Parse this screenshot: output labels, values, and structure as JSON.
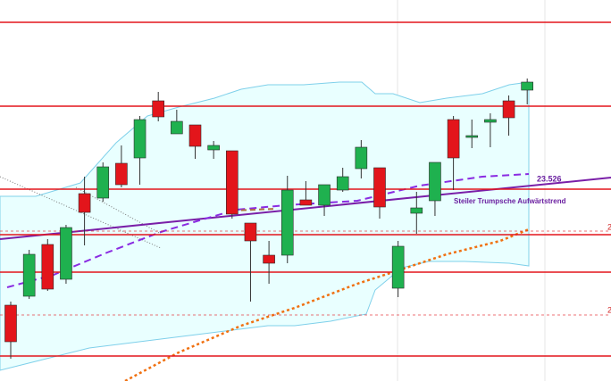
{
  "chart_data": {
    "type": "candlestick",
    "ylim": [
      22371,
      24506
    ],
    "up_color": "#1fb14f",
    "down_color": "#e3151b",
    "open": [
      22796,
      22846,
      23136,
      22941,
      23421,
      23396,
      23591,
      23621,
      23941,
      23756,
      23806,
      23666,
      23661,
      23256,
      23076,
      23076,
      23386,
      23356,
      23441,
      23561,
      23566,
      22891,
      23311,
      23381,
      23836,
      23736,
      23821,
      23941,
      24001
    ],
    "high": [
      22816,
      23106,
      23166,
      23246,
      23516,
      23596,
      23691,
      23856,
      23991,
      23891,
      23806,
      23716,
      23661,
      23256,
      23156,
      23521,
      23491,
      23471,
      23566,
      23721,
      23566,
      23156,
      23431,
      23596,
      23856,
      23836,
      23871,
      23971,
      24066
    ],
    "low": [
      22496,
      22831,
      22876,
      22916,
      23131,
      23376,
      23456,
      23471,
      23826,
      23756,
      23616,
      23616,
      23281,
      22816,
      22916,
      23031,
      23356,
      23296,
      23431,
      23506,
      23281,
      22841,
      23196,
      23296,
      23441,
      23676,
      23681,
      23746,
      23921
    ],
    "close": [
      22591,
      23081,
      22886,
      23231,
      23316,
      23571,
      23471,
      23836,
      23851,
      23826,
      23686,
      23691,
      23306,
      23156,
      23031,
      23441,
      23356,
      23471,
      23516,
      23681,
      23346,
      23126,
      23341,
      23596,
      23621,
      23746,
      23836,
      23846,
      24046
    ],
    "levels": [
      24381,
      23911,
      23446,
      23191,
      22981,
      22511
    ],
    "level_color": "#e3151b",
    "dashed_levels": [
      23211,
      22741
    ],
    "annotations": [
      "23.526",
      "Steiler Trumpsche Aufwärtstrend",
      "2",
      "2"
    ]
  }
}
